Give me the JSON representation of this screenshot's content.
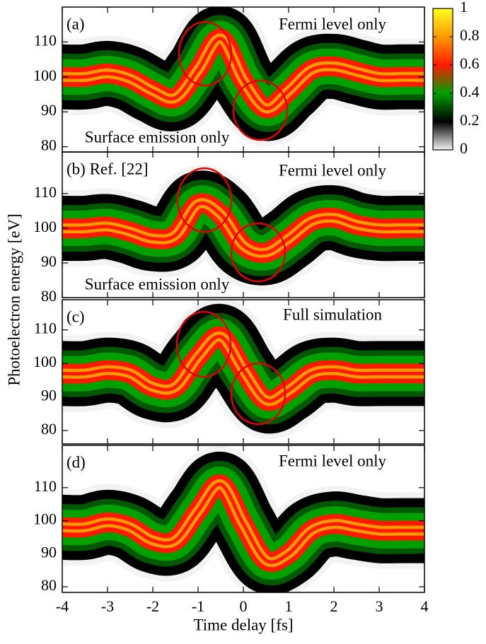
{
  "chart_data": [
    {
      "type": "heatmap",
      "label": "(a)",
      "annotations": [
        "Fermi level only",
        "Surface emission only"
      ],
      "x": [
        -4,
        -3.5,
        -3,
        -2.5,
        -2,
        -1.5,
        -1,
        -0.5,
        0,
        0.5,
        1,
        1.5,
        2,
        2.5,
        3,
        3.5,
        4
      ],
      "values": [
        100,
        100,
        101,
        99.5,
        96,
        94,
        102,
        111,
        99,
        91,
        96,
        102,
        103,
        101.5,
        100,
        100,
        100
      ],
      "ylim": [
        78.5,
        120
      ],
      "yticks": [
        80,
        90,
        100,
        110
      ]
    },
    {
      "type": "heatmap",
      "label": "(b) Ref. [22]",
      "annotations": [
        "Fermi level only",
        "Surface emission only"
      ],
      "ylabel": "Photoelectron energy [eV]",
      "x": [
        -4,
        -3.5,
        -3,
        -2.5,
        -2,
        -1.5,
        -1,
        -0.5,
        0,
        0.5,
        1,
        1.5,
        2,
        2.5,
        3,
        3.5,
        4
      ],
      "values": [
        100,
        100,
        100.5,
        99,
        97,
        98,
        107,
        104,
        95,
        93,
        97,
        102,
        103,
        101,
        100,
        100,
        100
      ],
      "ylim": [
        80,
        122
      ],
      "yticks": [
        80,
        90,
        100,
        110
      ]
    },
    {
      "type": "heatmap",
      "label": "(c)",
      "annotations": [
        "Full simulation"
      ],
      "x": [
        -4,
        -3.5,
        -3,
        -2.5,
        -2,
        -1.5,
        -1,
        -0.5,
        0,
        0.5,
        1,
        1.5,
        2,
        2.5,
        3,
        3.5,
        4
      ],
      "values": [
        97,
        97,
        98,
        97,
        93,
        93,
        102,
        108,
        98,
        89,
        92,
        97,
        98,
        97,
        97,
        97,
        97
      ],
      "ylim": [
        76,
        119
      ],
      "yticks": [
        80,
        90,
        100,
        110
      ]
    },
    {
      "type": "heatmap",
      "label": "(d)",
      "annotations": [
        "Fermi level only"
      ],
      "xlabel": "Time delay [fs]",
      "x": [
        -4,
        -3.5,
        -3,
        -2.5,
        -2,
        -1.5,
        -1,
        -0.5,
        0,
        0.5,
        1,
        1.5,
        2,
        2.5,
        3,
        3.5,
        4
      ],
      "values": [
        98,
        98,
        99.5,
        98,
        94,
        94,
        103,
        111,
        99,
        88,
        90,
        97,
        99,
        98,
        97,
        97,
        97
      ],
      "xlim": [
        -4,
        4
      ],
      "xticks": [
        -4,
        -3,
        -2,
        -1,
        0,
        1,
        2,
        3,
        4
      ],
      "ylim": [
        78.3,
        122.8
      ],
      "yticks": [
        80,
        90,
        100,
        110
      ]
    },
    {
      "type": "colorbar",
      "ylim": [
        0,
        1
      ],
      "yticks": [
        0,
        0.2,
        0.4,
        0.6,
        0.8,
        1
      ],
      "colorscale": [
        "#f2f2f2",
        "#000000",
        "#00a000",
        "#ff1a00",
        "#ff9a00",
        "#ffff20"
      ]
    }
  ]
}
